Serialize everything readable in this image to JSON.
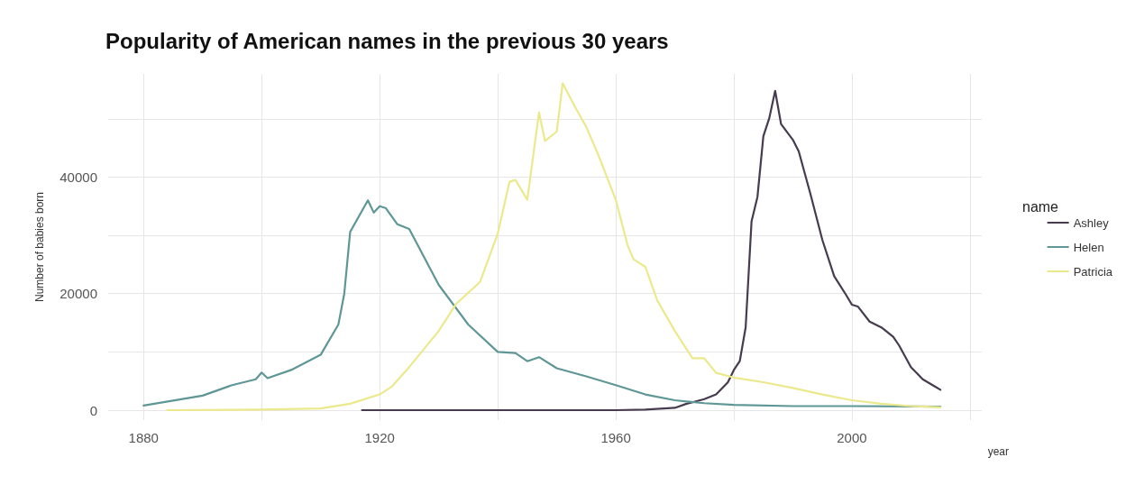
{
  "chart_data": {
    "type": "line",
    "title": "Popularity of American names in the previous 30 years",
    "xlabel": "year",
    "ylabel": "Number of babies born",
    "legend_title": "name",
    "legend": "right",
    "grid": true,
    "marker": "none",
    "line_style": "solid",
    "xlim": [
      1874,
      2022
    ],
    "xticks": [
      1880,
      {
        "value": 1900,
        "label": null
      },
      1920,
      {
        "value": 1940,
        "label": null
      },
      1960,
      {
        "value": 1980,
        "label": null
      },
      2000,
      {
        "value": 2020,
        "label": null
      }
    ],
    "ylim": [
      -1700,
      57700
    ],
    "yticks": [
      0,
      {
        "value": 10000,
        "label": null
      },
      20000,
      {
        "value": 30000,
        "label": null
      },
      40000,
      {
        "value": 50000,
        "label": null
      }
    ],
    "series": [
      {
        "name": "Ashley",
        "color": "#463b4f",
        "x": [
          1917,
          1930,
          1945,
          1960,
          1965,
          1970,
          1972,
          1975,
          1977,
          1979,
          1980,
          1981,
          1982,
          1983,
          1984,
          1985,
          1986,
          1987,
          1988,
          1990,
          1991,
          1993,
          1995,
          1997,
          1999,
          2000,
          2001,
          2003,
          2005,
          2007,
          2008,
          2010,
          2012,
          2014,
          2015
        ],
        "values": [
          0,
          0,
          0,
          0,
          100,
          400,
          1100,
          1900,
          2700,
          4800,
          6900,
          8400,
          14200,
          32400,
          36600,
          47000,
          50100,
          54800,
          49100,
          46400,
          44400,
          37000,
          29200,
          23000,
          19800,
          18100,
          17800,
          15200,
          14200,
          12600,
          11100,
          7400,
          5300,
          4100,
          3500
        ]
      },
      {
        "name": "Helen",
        "color": "#5f9696",
        "x": [
          1880,
          1890,
          1895,
          1899,
          1900,
          1901,
          1905,
          1910,
          1913,
          1914,
          1915,
          1918,
          1919,
          1920,
          1921,
          1923,
          1925,
          1930,
          1935,
          1940,
          1943,
          1945,
          1947,
          1950,
          1955,
          1960,
          1965,
          1970,
          1975,
          1980,
          1990,
          2000,
          2015
        ],
        "values": [
          800,
          2500,
          4300,
          5300,
          6450,
          5500,
          6900,
          9500,
          14700,
          20000,
          30600,
          36000,
          33900,
          35000,
          34700,
          31900,
          31100,
          21500,
          14700,
          10000,
          9800,
          8400,
          9100,
          7200,
          5800,
          4300,
          2700,
          1700,
          1200,
          900,
          700,
          700,
          600
        ]
      },
      {
        "name": "Patricia",
        "color": "#ebe98c",
        "x": [
          1884,
          1900,
          1910,
          1915,
          1920,
          1922,
          1925,
          1930,
          1933,
          1937,
          1940,
          1942,
          1943,
          1945,
          1947,
          1948,
          1950,
          1951,
          1953,
          1955,
          1957,
          1960,
          1962,
          1963,
          1965,
          1967,
          1970,
          1973,
          1975,
          1977,
          1980,
          1985,
          1990,
          1995,
          2000,
          2005,
          2010,
          2015
        ],
        "values": [
          0,
          100,
          300,
          1100,
          2700,
          4000,
          7400,
          13600,
          18300,
          22000,
          30300,
          39200,
          39500,
          36100,
          51100,
          46200,
          47800,
          56100,
          52200,
          48600,
          43900,
          36100,
          28300,
          25900,
          24600,
          18900,
          13600,
          8900,
          8900,
          6400,
          5600,
          4800,
          3800,
          2700,
          1700,
          1100,
          700,
          500
        ]
      }
    ]
  }
}
